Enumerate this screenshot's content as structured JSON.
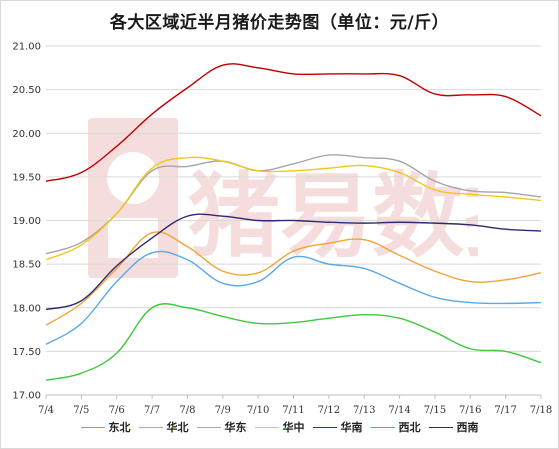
{
  "chart_data": {
    "type": "line",
    "title": "各大区域近半月猪价走势图（单位：元/斤）",
    "xlabel": "",
    "ylabel": "",
    "ylim": [
      17.0,
      21.0
    ],
    "yticks": [
      "17.00",
      "17.50",
      "18.00",
      "18.50",
      "19.00",
      "19.50",
      "20.00",
      "20.50",
      "21.00"
    ],
    "ytick_values": [
      17.0,
      17.5,
      18.0,
      18.5,
      19.0,
      19.5,
      20.0,
      20.5,
      21.0
    ],
    "categories": [
      "7/4",
      "7/5",
      "7/6",
      "7/7",
      "7/8",
      "7/9",
      "7/10",
      "7/11",
      "7/12",
      "7/13",
      "7/14",
      "7/15",
      "7/16",
      "7/17",
      "7/18"
    ],
    "grid": "horizontal",
    "legend": "bottom",
    "series": [
      {
        "name": "东北",
        "color": "#5aa9e6",
        "values": [
          17.58,
          17.82,
          18.3,
          18.63,
          18.55,
          18.28,
          18.3,
          18.58,
          18.5,
          18.45,
          18.28,
          18.12,
          18.06,
          18.05,
          18.06
        ]
      },
      {
        "name": "华北",
        "color": "#f2a33a",
        "values": [
          17.8,
          18.05,
          18.45,
          18.86,
          18.7,
          18.42,
          18.4,
          18.65,
          18.74,
          18.78,
          18.6,
          18.42,
          18.3,
          18.32,
          18.4
        ]
      },
      {
        "name": "华东",
        "color": "#a6a6a6",
        "values": [
          18.62,
          18.75,
          19.08,
          19.57,
          19.62,
          19.68,
          19.57,
          19.65,
          19.75,
          19.72,
          19.68,
          19.45,
          19.34,
          19.32,
          19.27
        ]
      },
      {
        "name": "华中",
        "color": "#f5c518",
        "values": [
          18.55,
          18.72,
          19.08,
          19.6,
          19.72,
          19.68,
          19.57,
          19.57,
          19.6,
          19.63,
          19.55,
          19.35,
          19.3,
          19.27,
          19.23
        ]
      },
      {
        "name": "华南",
        "color": "#c00000",
        "values": [
          19.45,
          19.55,
          19.85,
          20.22,
          20.52,
          20.78,
          20.75,
          20.68,
          20.68,
          20.68,
          20.66,
          20.45,
          20.44,
          20.42,
          20.2
        ]
      },
      {
        "name": "西北",
        "color": "#3ec93e",
        "values": [
          17.17,
          17.25,
          17.48,
          18.0,
          18.0,
          17.9,
          17.82,
          17.83,
          17.88,
          17.92,
          17.88,
          17.72,
          17.53,
          17.5,
          17.37
        ]
      },
      {
        "name": "西南",
        "color": "#2e2a6b",
        "values": [
          17.98,
          18.08,
          18.48,
          18.8,
          19.05,
          19.05,
          19.0,
          19.0,
          18.98,
          18.97,
          18.98,
          18.97,
          18.95,
          18.9,
          18.88
        ]
      }
    ]
  },
  "watermark": {
    "text": "猪易数据",
    "icon": "pig-logo-icon"
  }
}
